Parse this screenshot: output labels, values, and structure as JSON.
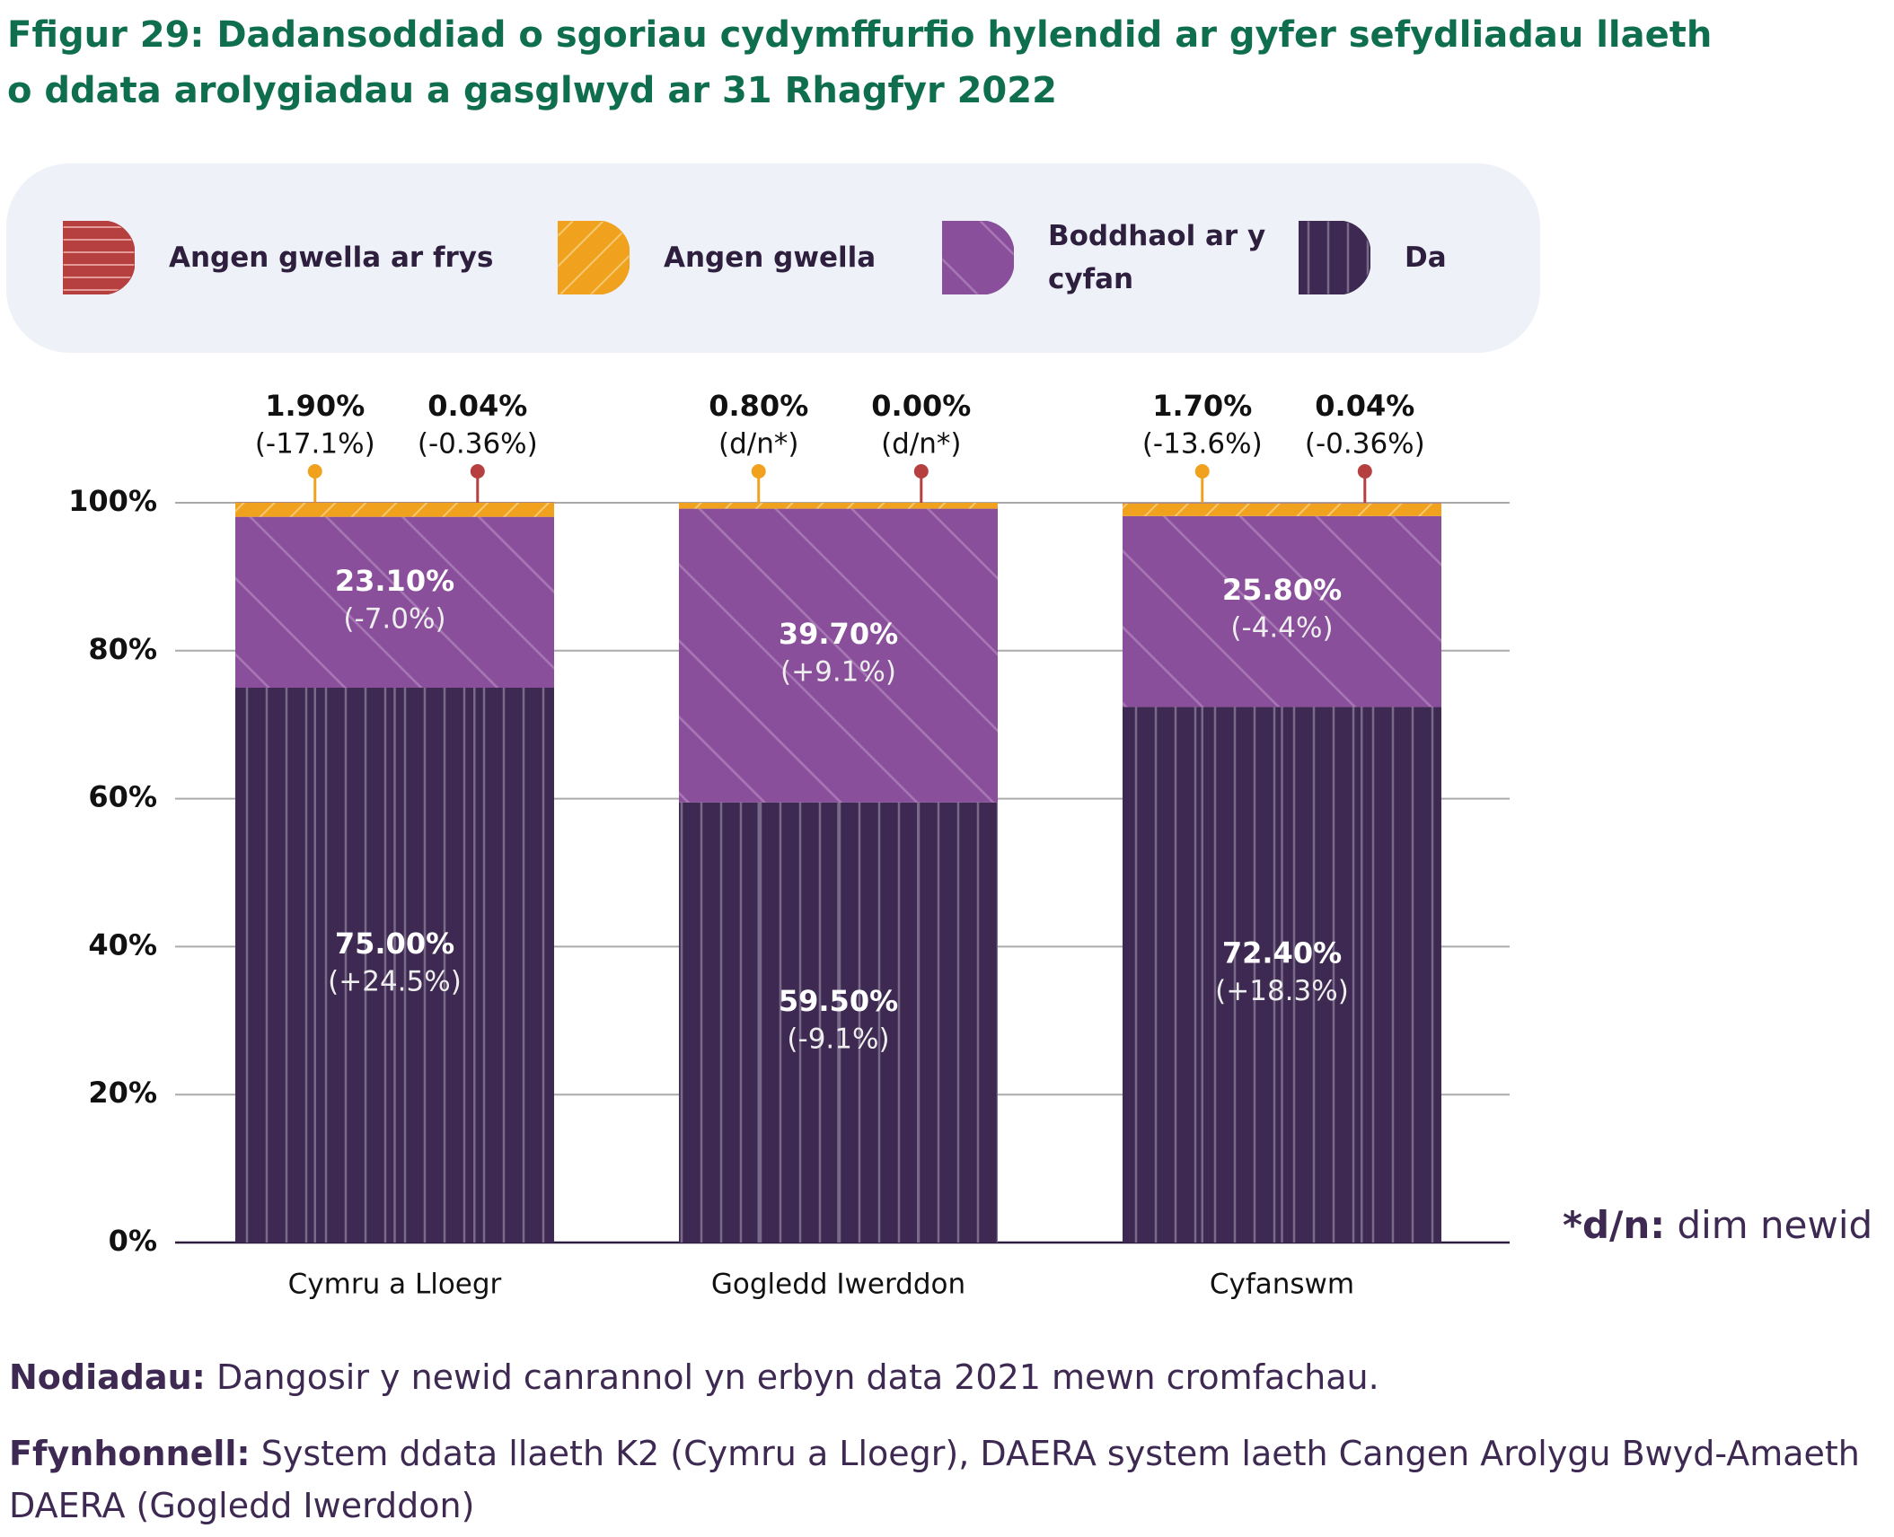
{
  "chart_data": {
    "type": "stacked_bar",
    "title": "Ffigur 29: Dadansoddiad o sgoriau cydymffurfio hylendid ar gyfer sefydliadau llaeth o ddata arolygiadau a gasglwyd ar 31 Rhagfyr 2022",
    "categories": [
      "Cymru a Lloegr",
      "Gogledd Iwerddon",
      "Cyfanswm"
    ],
    "series": [
      {
        "name": "Angen gwella ar frys",
        "color": "#b5403f",
        "values": [
          0.04,
          0.0,
          0.04
        ],
        "value_labels": [
          "0.04%",
          "0.00%",
          "0.04%"
        ],
        "change_labels": [
          "(-0.36%)",
          "(d/n*)",
          "(-0.36%)"
        ]
      },
      {
        "name": "Angen gwella",
        "color": "#f0a21e",
        "values": [
          1.9,
          0.8,
          1.7
        ],
        "value_labels": [
          "1.90%",
          "0.80%",
          "1.70%"
        ],
        "change_labels": [
          "(-17.1%)",
          "(d/n*)",
          "(-13.6%)"
        ]
      },
      {
        "name": "Boddhaol ar y cyfan",
        "color": "#8a4f9b",
        "values": [
          23.1,
          39.7,
          25.8
        ],
        "value_labels": [
          "23.10%",
          "39.70%",
          "25.80%"
        ],
        "change_labels": [
          "(-7.0%)",
          "(+9.1%)",
          "(-4.4%)"
        ]
      },
      {
        "name": "Da",
        "color": "#3d2951",
        "values": [
          75.0,
          59.5,
          72.4
        ],
        "value_labels": [
          "75.00%",
          "59.50%",
          "72.40%"
        ],
        "change_labels": [
          "(+24.5%)",
          "(-9.1%)",
          "(+18.3%)"
        ]
      }
    ],
    "ylim": [
      0,
      100
    ],
    "yticks": [
      {
        "value": 0,
        "label": "0%"
      },
      {
        "value": 20,
        "label": "20%"
      },
      {
        "value": 40,
        "label": "40%"
      },
      {
        "value": 60,
        "label": "60%"
      },
      {
        "value": 80,
        "label": "80%"
      },
      {
        "value": 100,
        "label": "100%"
      }
    ],
    "grid": true,
    "footnote": {
      "label": "*d/n:",
      "text": "dim newid"
    },
    "notes": {
      "label": "Nodiadau:",
      "text": "Dangosir y newid canrannol yn erbyn data 2021 mewn cromfachau."
    },
    "source": {
      "label": "Ffynhonnell:",
      "text": "System ddata llaeth K2 (Cymru a Lloegr), DAERA system laeth Cangen Arolygu Bwyd-Amaeth DAERA (Gogledd Iwerddon)"
    }
  }
}
